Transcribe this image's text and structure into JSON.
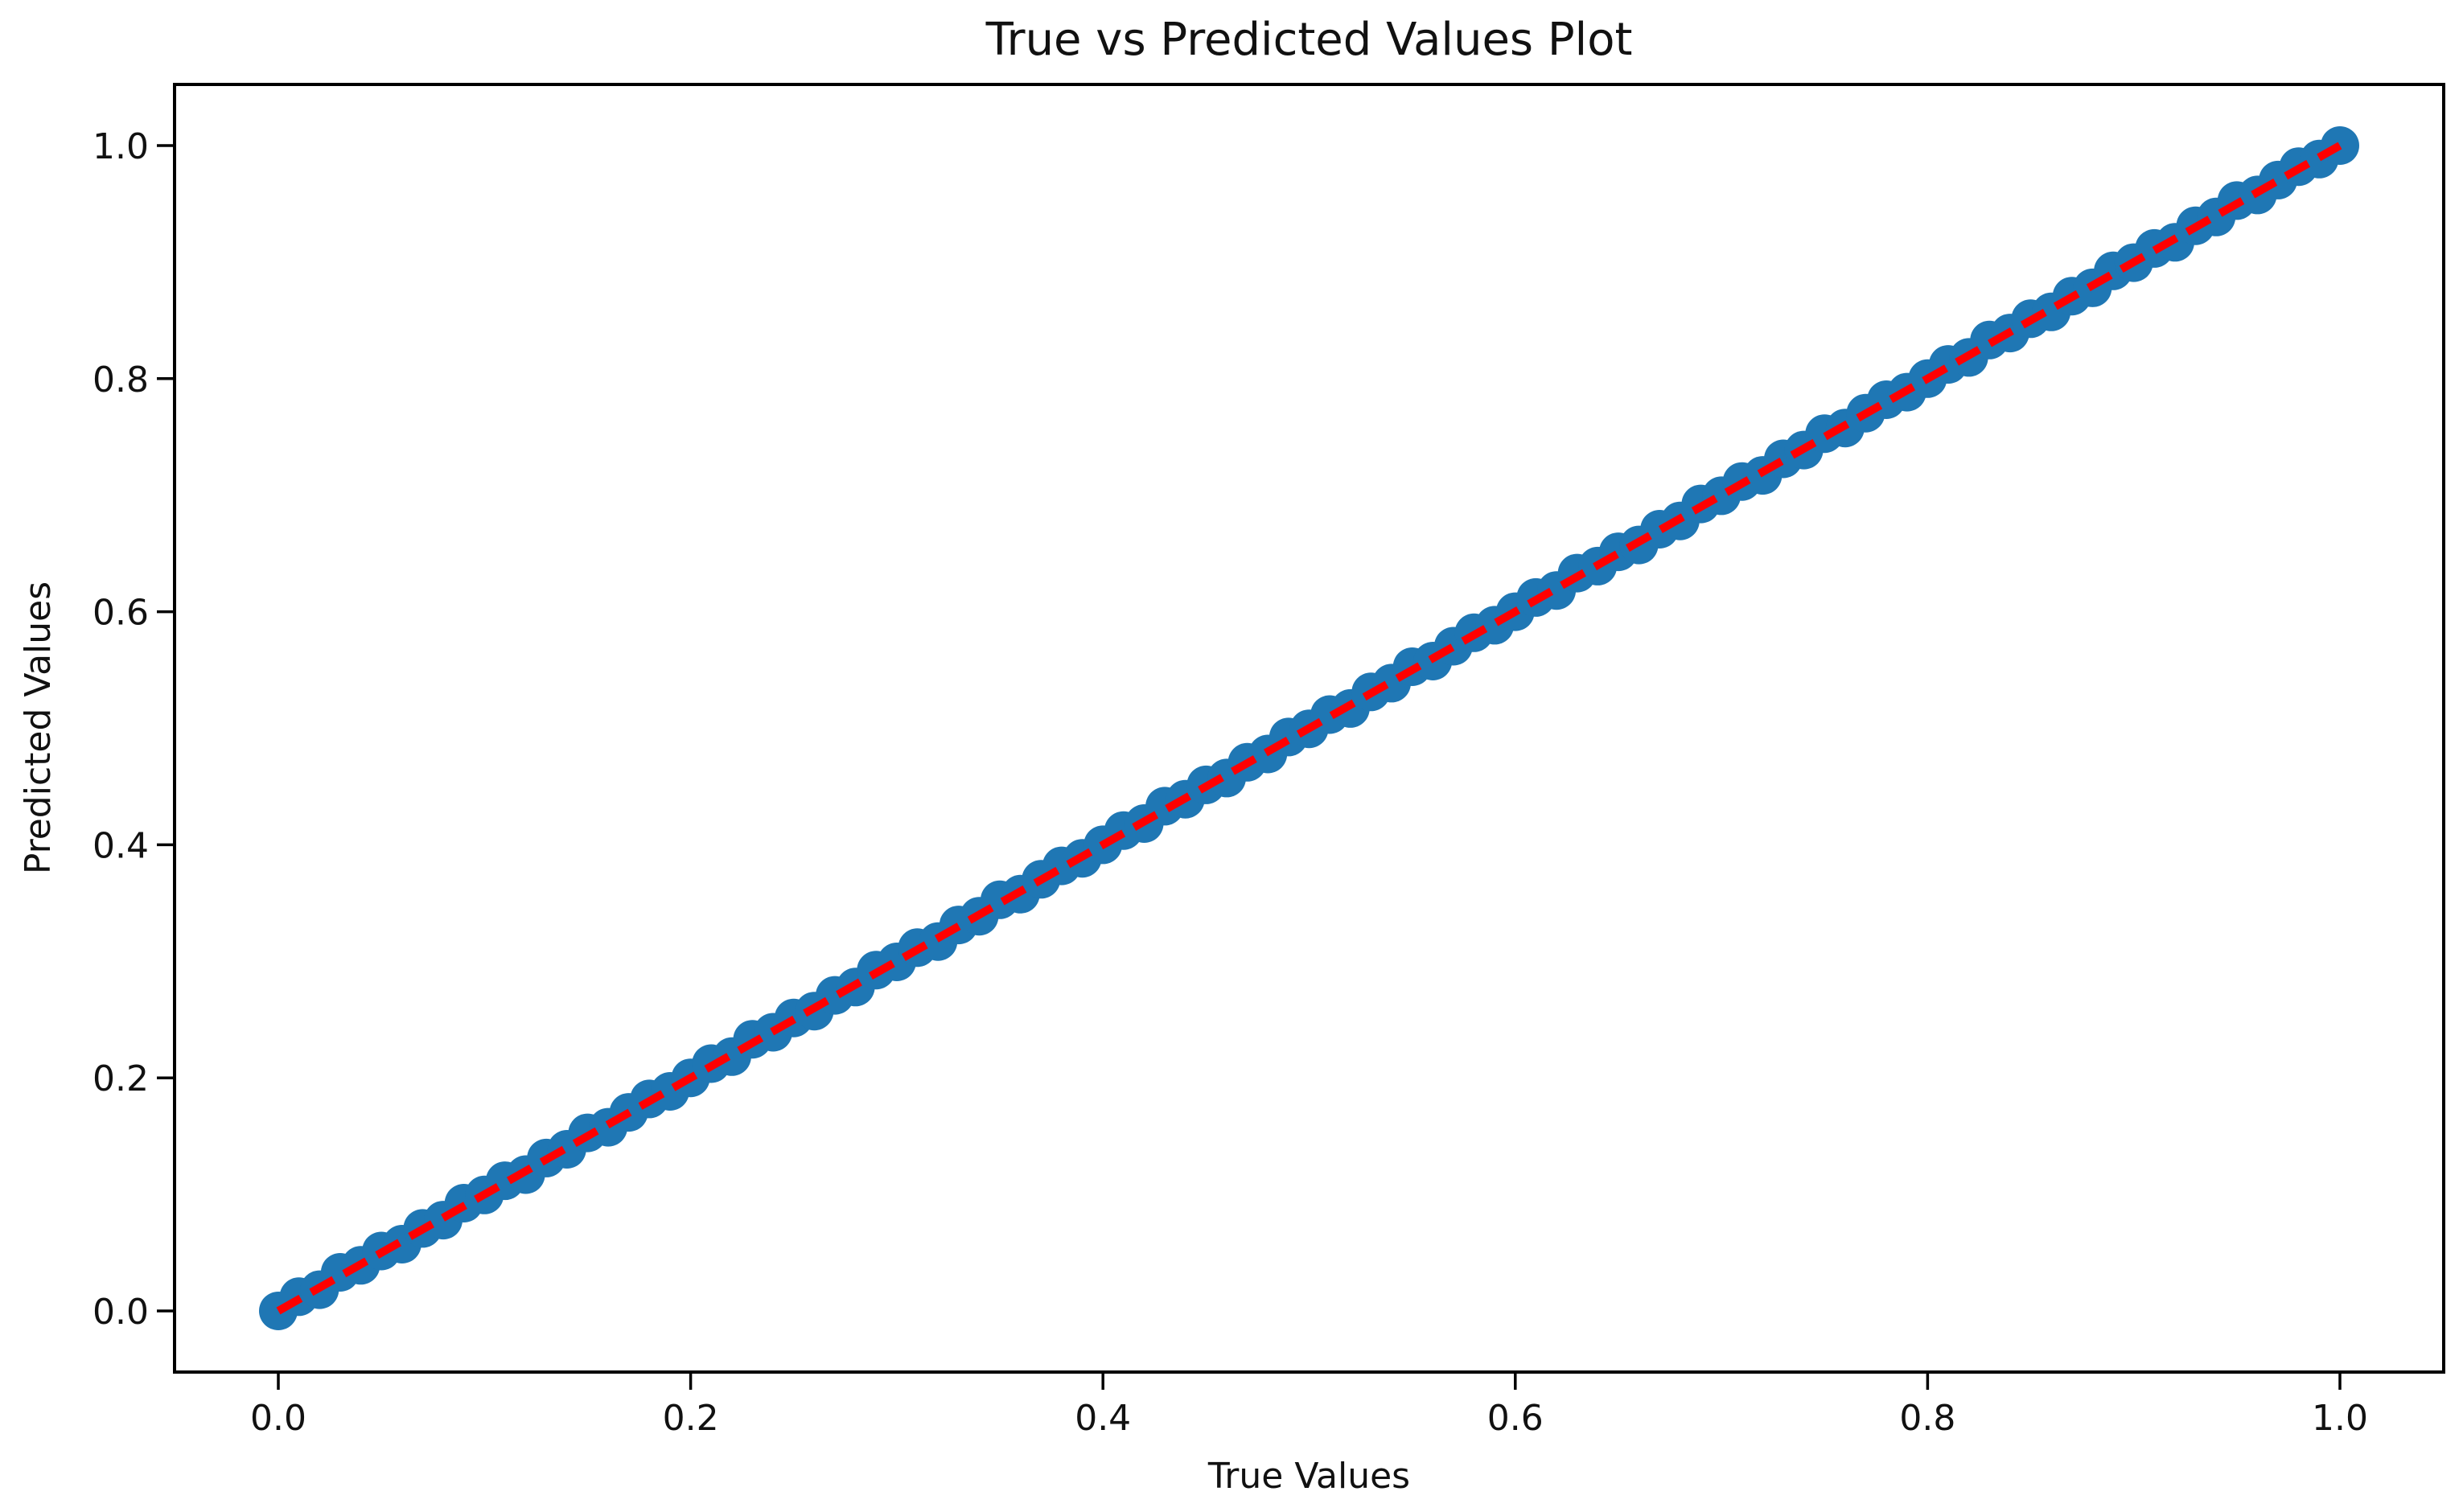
{
  "figure": {
    "background": "#ffffff"
  },
  "chart_data": {
    "type": "scatter",
    "title": "True vs Predicted Values Plot",
    "xlabel": "True Values",
    "ylabel": "Predicted Values",
    "xlim": [
      -0.05,
      1.05
    ],
    "ylim": [
      -0.05,
      1.05
    ],
    "grid": false,
    "legend_position": "none",
    "x_tick_values": [
      0.0,
      0.2,
      0.4,
      0.6,
      0.8,
      1.0
    ],
    "x_tick_labels": [
      "0.0",
      "0.2",
      "0.4",
      "0.6",
      "0.8",
      "1.0"
    ],
    "y_tick_values": [
      0.0,
      0.2,
      0.4,
      0.6,
      0.8,
      1.0
    ],
    "y_tick_labels": [
      "0.0",
      "0.2",
      "0.4",
      "0.6",
      "0.8",
      "1.0"
    ],
    "series": [
      {
        "name": "true-vs-predicted-scatter",
        "type": "scatter",
        "marker": "circle",
        "color": "#1f77b4",
        "points": [
          [
            0.0,
            0.0
          ],
          [
            0.01,
            0.0122
          ],
          [
            0.02,
            0.0182
          ],
          [
            0.03,
            0.0331
          ],
          [
            0.04,
            0.0391
          ],
          [
            0.05,
            0.0514
          ],
          [
            0.06,
            0.0573
          ],
          [
            0.07,
            0.0708
          ],
          [
            0.08,
            0.0779
          ],
          [
            0.09,
            0.0925
          ],
          [
            0.1,
            0.0995
          ],
          [
            0.11,
            0.1117
          ],
          [
            0.12,
            0.117
          ],
          [
            0.13,
            0.1312
          ],
          [
            0.14,
            0.1387
          ],
          [
            0.15,
            0.1528
          ],
          [
            0.16,
            0.1576
          ],
          [
            0.17,
            0.1704
          ],
          [
            0.18,
            0.1819
          ],
          [
            0.19,
            0.1884
          ],
          [
            0.2,
            0.2
          ],
          [
            0.21,
            0.2122
          ],
          [
            0.22,
            0.2182
          ],
          [
            0.23,
            0.2331
          ],
          [
            0.24,
            0.2391
          ],
          [
            0.25,
            0.2514
          ],
          [
            0.26,
            0.2573
          ],
          [
            0.27,
            0.2708
          ],
          [
            0.28,
            0.2779
          ],
          [
            0.29,
            0.2925
          ],
          [
            0.3,
            0.2995
          ],
          [
            0.31,
            0.3117
          ],
          [
            0.32,
            0.317
          ],
          [
            0.33,
            0.3312
          ],
          [
            0.34,
            0.3387
          ],
          [
            0.35,
            0.3528
          ],
          [
            0.36,
            0.3576
          ],
          [
            0.37,
            0.3704
          ],
          [
            0.38,
            0.3819
          ],
          [
            0.39,
            0.3884
          ],
          [
            0.4,
            0.4
          ],
          [
            0.41,
            0.4122
          ],
          [
            0.42,
            0.4182
          ],
          [
            0.43,
            0.4331
          ],
          [
            0.44,
            0.4391
          ],
          [
            0.45,
            0.4514
          ],
          [
            0.46,
            0.4573
          ],
          [
            0.47,
            0.4708
          ],
          [
            0.48,
            0.4779
          ],
          [
            0.49,
            0.4925
          ],
          [
            0.5,
            0.4995
          ],
          [
            0.51,
            0.5117
          ],
          [
            0.52,
            0.517
          ],
          [
            0.53,
            0.5312
          ],
          [
            0.54,
            0.5387
          ],
          [
            0.55,
            0.5528
          ],
          [
            0.56,
            0.5576
          ],
          [
            0.57,
            0.5704
          ],
          [
            0.58,
            0.5819
          ],
          [
            0.59,
            0.5884
          ],
          [
            0.6,
            0.6
          ],
          [
            0.61,
            0.6122
          ],
          [
            0.62,
            0.6182
          ],
          [
            0.63,
            0.6331
          ],
          [
            0.64,
            0.6391
          ],
          [
            0.65,
            0.6514
          ],
          [
            0.66,
            0.6573
          ],
          [
            0.67,
            0.6708
          ],
          [
            0.68,
            0.6779
          ],
          [
            0.69,
            0.6925
          ],
          [
            0.7,
            0.6995
          ],
          [
            0.71,
            0.7117
          ],
          [
            0.72,
            0.717
          ],
          [
            0.73,
            0.7312
          ],
          [
            0.74,
            0.7387
          ],
          [
            0.75,
            0.7528
          ],
          [
            0.76,
            0.7576
          ],
          [
            0.77,
            0.7704
          ],
          [
            0.78,
            0.7819
          ],
          [
            0.79,
            0.7884
          ],
          [
            0.8,
            0.8
          ],
          [
            0.81,
            0.8122
          ],
          [
            0.82,
            0.8182
          ],
          [
            0.83,
            0.8331
          ],
          [
            0.84,
            0.8391
          ],
          [
            0.85,
            0.8514
          ],
          [
            0.86,
            0.8573
          ],
          [
            0.87,
            0.8708
          ],
          [
            0.88,
            0.8779
          ],
          [
            0.89,
            0.8925
          ],
          [
            0.9,
            0.8995
          ],
          [
            0.91,
            0.9117
          ],
          [
            0.92,
            0.917
          ],
          [
            0.93,
            0.9312
          ],
          [
            0.94,
            0.9387
          ],
          [
            0.95,
            0.9528
          ],
          [
            0.96,
            0.9576
          ],
          [
            0.97,
            0.9704
          ],
          [
            0.98,
            0.9819
          ],
          [
            0.99,
            0.9884
          ],
          [
            1.0,
            1.0
          ]
        ]
      },
      {
        "name": "identity-reference-line",
        "type": "line",
        "style": "dashed",
        "color": "#ff0000",
        "points": [
          [
            0,
            0
          ],
          [
            1,
            1
          ]
        ]
      }
    ],
    "colors": {
      "scatter": "#1f77b4",
      "reference_line": "#ff0000",
      "axis": "#000000",
      "text": "#111111",
      "background": "#ffffff"
    }
  }
}
